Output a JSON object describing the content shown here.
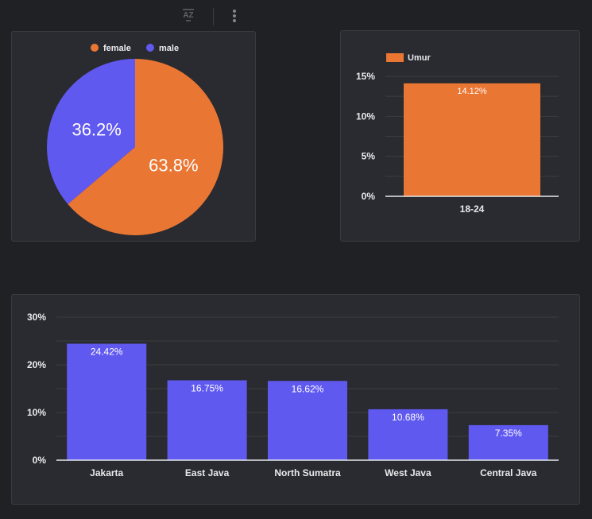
{
  "toolbar": {
    "sort_icon": "sort-az-icon",
    "menu_icon": "more-vertical-icon"
  },
  "colors": {
    "orange": "#ea7633",
    "purple": "#6059f0",
    "grid": "#3b3c41",
    "axis": "#e8eaed",
    "text": "#e8eaed",
    "panel": "#2a2b30"
  },
  "chart_data": [
    {
      "type": "pie",
      "title": "",
      "legend_position": "top",
      "labels": [
        "female",
        "male"
      ],
      "values": [
        63.8,
        36.2
      ],
      "value_labels": [
        "63.8%",
        "36.2%"
      ]
    },
    {
      "type": "bar",
      "title": "",
      "legend_position": "top-left",
      "categories": [
        "18-24"
      ],
      "series": [
        {
          "name": "Umur",
          "values": [
            14.12
          ]
        }
      ],
      "value_labels": [
        "14.12%"
      ],
      "ylim": [
        0,
        15
      ],
      "yticks": [
        0,
        5,
        10,
        15
      ],
      "ytick_labels": [
        "0%",
        "5%",
        "10%",
        "15%"
      ],
      "grid": true
    },
    {
      "type": "bar",
      "title": "",
      "categories": [
        "Jakarta",
        "East Java",
        "North Sumatra",
        "West Java",
        "Central Java"
      ],
      "values": [
        24.42,
        16.75,
        16.62,
        10.68,
        7.35
      ],
      "value_labels": [
        "24.42%",
        "16.75%",
        "16.62%",
        "10.68%",
        "7.35%"
      ],
      "ylim": [
        0,
        30
      ],
      "yticks": [
        0,
        10,
        20,
        30
      ],
      "ytick_labels": [
        "0%",
        "10%",
        "20%",
        "30%"
      ],
      "grid": true
    }
  ]
}
